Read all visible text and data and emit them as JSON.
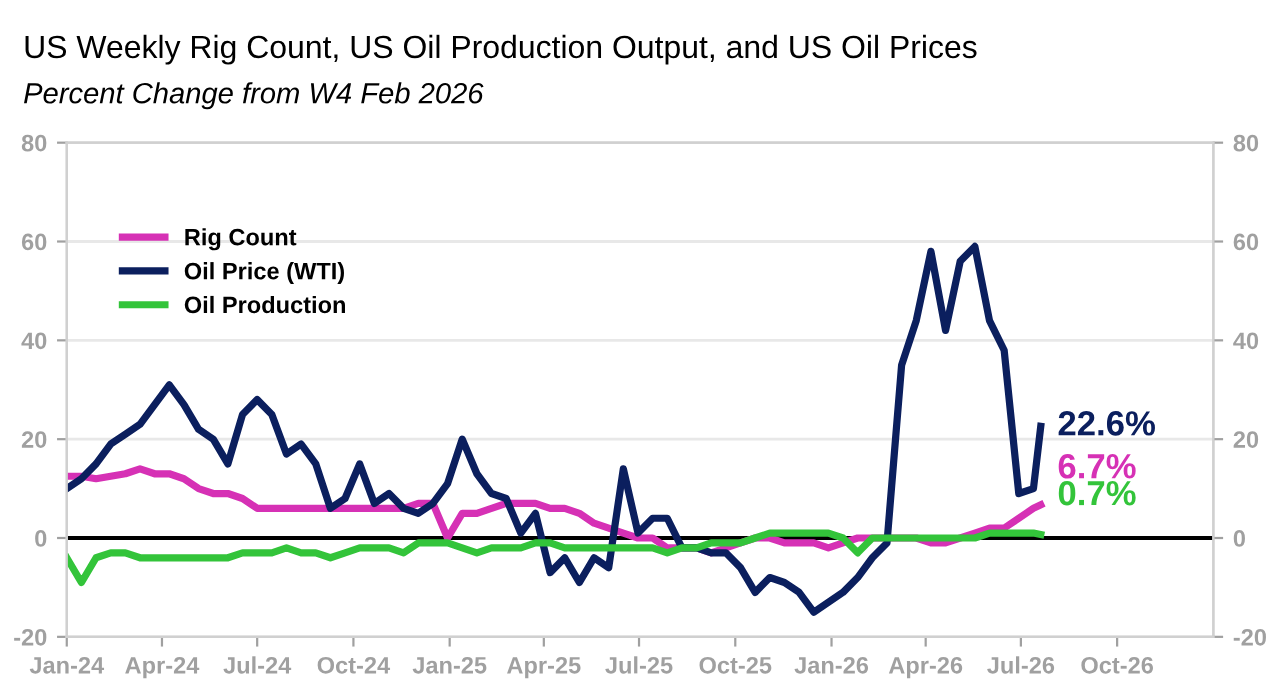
{
  "chart_data": {
    "type": "line",
    "title": "US Weekly Rig Count, US Oil Production Output, and US Oil Prices",
    "subtitle": "Percent Change from W4 Feb 2026",
    "x": [
      "2024-01-01",
      "2024-01-15",
      "2024-01-29",
      "2024-02-12",
      "2024-02-26",
      "2024-03-11",
      "2024-03-25",
      "2024-04-08",
      "2024-04-22",
      "2024-05-06",
      "2024-05-20",
      "2024-06-03",
      "2024-06-17",
      "2024-07-01",
      "2024-07-15",
      "2024-07-29",
      "2024-08-12",
      "2024-08-26",
      "2024-09-09",
      "2024-09-23",
      "2024-10-07",
      "2024-10-21",
      "2024-11-04",
      "2024-11-18",
      "2024-12-02",
      "2024-12-16",
      "2024-12-30",
      "2025-01-13",
      "2025-01-27",
      "2025-02-10",
      "2025-02-24",
      "2025-03-10",
      "2025-03-24",
      "2025-04-07",
      "2025-04-21",
      "2025-05-05",
      "2025-05-19",
      "2025-06-02",
      "2025-06-16",
      "2025-06-30",
      "2025-07-14",
      "2025-07-28",
      "2025-08-11",
      "2025-08-25",
      "2025-09-08",
      "2025-09-22",
      "2025-10-06",
      "2025-10-20",
      "2025-11-03",
      "2025-11-17",
      "2025-12-01",
      "2025-12-15",
      "2025-12-29",
      "2026-01-12",
      "2026-01-26",
      "2026-02-09",
      "2026-02-23",
      "2026-03-09",
      "2026-03-23",
      "2026-04-06",
      "2026-04-20",
      "2026-05-04",
      "2026-05-18",
      "2026-06-01",
      "2026-06-15",
      "2026-06-29",
      "2026-07-13",
      "2026-07-20"
    ],
    "series": [
      {
        "name": "Rig Count",
        "color": "#d631b5",
        "values": [
          12.5,
          12.5,
          12,
          12.5,
          13,
          14,
          13,
          13,
          12,
          10,
          9,
          9,
          8,
          6,
          6,
          6,
          6,
          6,
          6,
          6,
          6,
          6,
          6,
          6,
          7,
          7,
          0,
          5,
          5,
          6,
          7,
          7,
          7,
          6,
          6,
          5,
          3,
          2,
          1,
          0,
          0,
          -2,
          -2,
          -2,
          -3,
          -2,
          -1,
          0,
          0,
          -1,
          -1,
          -1,
          -2,
          -1,
          0,
          0,
          0,
          0,
          0,
          -1,
          -1,
          0,
          1,
          2,
          2,
          4,
          6,
          6.7
        ],
        "value_labels": [
          null,
          null,
          null,
          null,
          null,
          null,
          null,
          null,
          null,
          null,
          null,
          null,
          null,
          null,
          null,
          null,
          null,
          null,
          null,
          null,
          null,
          null,
          null,
          null,
          null,
          null,
          null,
          null,
          null,
          null,
          null,
          null,
          null,
          null,
          null,
          null,
          null,
          null,
          null,
          null,
          null,
          null,
          null,
          null,
          null,
          null,
          null,
          null,
          null,
          null,
          null,
          null,
          null,
          null,
          null,
          null,
          null,
          null,
          null,
          null,
          null,
          null,
          null,
          null,
          null,
          null,
          null,
          "6.7%"
        ]
      },
      {
        "name": "Oil Price (WTI)",
        "color": "#0b1f5e",
        "values": [
          10,
          12,
          15,
          19,
          21,
          23,
          27,
          31,
          27,
          22,
          20,
          15,
          25,
          28,
          25,
          17,
          19,
          15,
          6,
          8,
          15,
          7,
          9,
          6,
          5,
          7,
          11,
          20,
          13,
          9,
          8,
          1,
          5,
          -7,
          -4,
          -9,
          -4,
          -6,
          14,
          1,
          4,
          4,
          -2,
          -2,
          -3,
          -3,
          -6,
          -11,
          -8,
          -9,
          -11,
          -15,
          -13,
          -11,
          -8,
          -4,
          -1,
          35,
          44,
          58,
          42,
          56,
          59,
          44,
          38,
          9,
          10,
          22.6
        ],
        "value_labels": [
          null,
          null,
          null,
          null,
          null,
          null,
          null,
          null,
          null,
          null,
          null,
          null,
          null,
          null,
          null,
          null,
          null,
          null,
          null,
          null,
          null,
          null,
          null,
          null,
          null,
          null,
          null,
          null,
          null,
          null,
          null,
          null,
          null,
          null,
          null,
          null,
          null,
          null,
          null,
          null,
          null,
          null,
          null,
          null,
          null,
          null,
          null,
          null,
          null,
          null,
          null,
          null,
          null,
          null,
          null,
          null,
          null,
          null,
          null,
          null,
          null,
          null,
          null,
          null,
          null,
          null,
          null,
          "22.6%"
        ]
      },
      {
        "name": "Oil Production",
        "color": "#33c43a",
        "values": [
          -4,
          -9,
          -4,
          -3,
          -3,
          -4,
          -4,
          -4,
          -4,
          -4,
          -4,
          -4,
          -3,
          -3,
          -3,
          -2,
          -3,
          -3,
          -4,
          -3,
          -2,
          -2,
          -2,
          -3,
          -1,
          -1,
          -1,
          -2,
          -3,
          -2,
          -2,
          -2,
          -1,
          -1,
          -2,
          -2,
          -2,
          -2,
          -2,
          -2,
          -2,
          -3,
          -2,
          -2,
          -1,
          -1,
          -1,
          0,
          1,
          1,
          1,
          1,
          1,
          0,
          -3,
          0,
          0,
          0,
          0,
          0,
          0,
          0,
          0,
          1,
          1,
          1,
          1,
          0.7
        ],
        "value_labels": [
          null,
          null,
          null,
          null,
          null,
          null,
          null,
          null,
          null,
          null,
          null,
          null,
          null,
          null,
          null,
          null,
          null,
          null,
          null,
          null,
          null,
          null,
          null,
          null,
          null,
          null,
          null,
          null,
          null,
          null,
          null,
          null,
          null,
          null,
          null,
          null,
          null,
          null,
          null,
          null,
          null,
          null,
          null,
          null,
          null,
          null,
          null,
          null,
          null,
          null,
          null,
          null,
          null,
          null,
          null,
          null,
          null,
          null,
          null,
          null,
          null,
          null,
          null,
          null,
          null,
          null,
          null,
          "0.7%"
        ]
      }
    ],
    "xlim": [
      "2024-01-01",
      "2027-01-01"
    ],
    "xticks": [
      {
        "value": "2024-01-01",
        "label": "Jan-24"
      },
      {
        "value": "2024-04-01",
        "label": "Apr-24"
      },
      {
        "value": "2024-07-01",
        "label": "Jul-24"
      },
      {
        "value": "2024-10-01",
        "label": "Oct-24"
      },
      {
        "value": "2025-01-01",
        "label": "Jan-25"
      },
      {
        "value": "2025-04-01",
        "label": "Apr-25"
      },
      {
        "value": "2025-07-01",
        "label": "Jul-25"
      },
      {
        "value": "2025-10-01",
        "label": "Oct-25"
      },
      {
        "value": "2026-01-01",
        "label": "Jan-26"
      },
      {
        "value": "2026-04-01",
        "label": "Apr-26"
      },
      {
        "value": "2026-07-01",
        "label": "Jul-26"
      },
      {
        "value": "2026-10-01",
        "label": "Oct-26"
      }
    ],
    "ylim": [
      -20,
      80
    ],
    "yticks": [
      -20,
      0,
      20,
      40,
      60,
      80
    ],
    "y2lim": [
      -20,
      80
    ],
    "y2ticks": [
      -20,
      0,
      20,
      40,
      60,
      80
    ],
    "ref_lines": [
      {
        "axis": "y",
        "value": 0,
        "color": "#000000"
      }
    ],
    "grid": "y",
    "legend": "top left",
    "marker": "none",
    "line_style": "solid"
  }
}
